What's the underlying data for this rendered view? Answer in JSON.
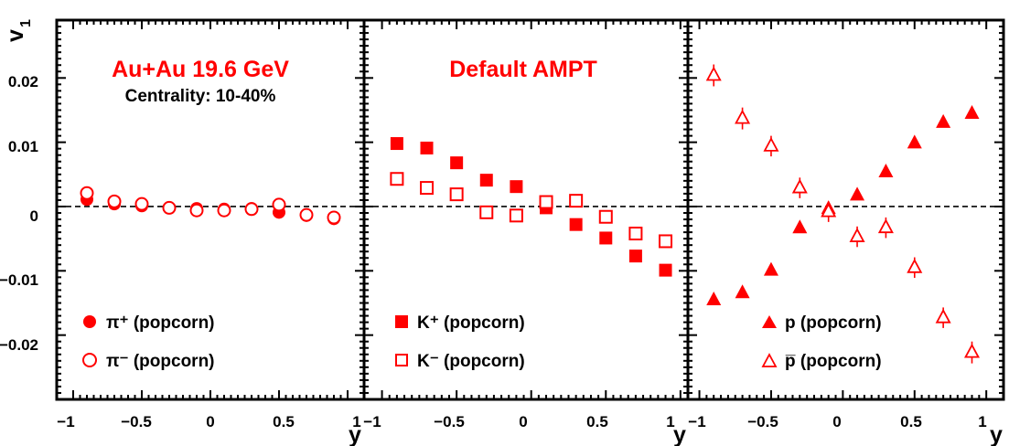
{
  "colors": {
    "marker": "#ff0000",
    "frame": "#000000",
    "background": "#ffffff"
  },
  "chart_data": {
    "type": "scatter",
    "ylabel": "v",
    "ylabel_sub": "1",
    "xlabel": "y",
    "xlim": [
      -1,
      1
    ],
    "ylim": [
      -0.03,
      0.029
    ],
    "x_ticks": [
      "−1",
      "−0.5",
      "0",
      "0.5",
      "1"
    ],
    "x_tick_values": [
      -1,
      -0.5,
      0,
      0.5,
      1
    ],
    "y_ticks": [
      "−0.02",
      "−0.01",
      "0",
      "0.01",
      "0.02"
    ],
    "y_tick_values": [
      -0.02,
      -0.01,
      0,
      0.01,
      0.02
    ],
    "zero_line": "dashed",
    "panels": [
      {
        "name": "pions",
        "title": "Au+Au 19.6 GeV",
        "subtitle": "Centrality: 10-40%",
        "series": [
          {
            "name": "π⁺ (popcorn)",
            "marker": "circle",
            "filled": true,
            "x": [
              -0.9,
              -0.7,
              -0.5,
              -0.3,
              -0.1,
              0.1,
              0.3,
              0.5,
              0.7,
              0.9
            ],
            "y": [
              0.0011,
              0.0004,
              0.0001,
              -0.0002,
              -0.0003,
              -0.0004,
              -0.0003,
              -0.0009,
              -0.0014,
              -0.0019
            ]
          },
          {
            "name": "π⁻ (popcorn)",
            "marker": "circle",
            "filled": false,
            "x": [
              -0.9,
              -0.7,
              -0.5,
              -0.3,
              -0.1,
              0.1,
              0.3,
              0.5,
              0.7,
              0.9
            ],
            "y": [
              0.0021,
              0.0008,
              0.0004,
              -0.0002,
              -0.0006,
              -0.0006,
              -0.0004,
              0.0003,
              -0.0013,
              -0.0017
            ]
          }
        ]
      },
      {
        "name": "kaons",
        "title": "Default AMPT",
        "subtitle": "",
        "series": [
          {
            "name": "K⁺ (popcorn)",
            "marker": "square",
            "filled": true,
            "x": [
              -0.9,
              -0.7,
              -0.5,
              -0.3,
              -0.1,
              0.1,
              0.3,
              0.5,
              0.7,
              0.9
            ],
            "y": [
              0.0098,
              0.0091,
              0.0068,
              0.0041,
              0.0031,
              -0.0002,
              -0.0028,
              -0.0049,
              -0.0077,
              -0.0099
            ]
          },
          {
            "name": "K⁻ (popcorn)",
            "marker": "square",
            "filled": false,
            "x": [
              -0.9,
              -0.7,
              -0.5,
              -0.3,
              -0.1,
              0.1,
              0.3,
              0.5,
              0.7,
              0.9
            ],
            "y": [
              0.0043,
              0.0029,
              0.0019,
              -0.0009,
              -0.0014,
              0.0007,
              0.0009,
              -0.0016,
              -0.0042,
              -0.0054
            ]
          }
        ]
      },
      {
        "name": "protons",
        "title": "",
        "subtitle": "",
        "series": [
          {
            "name": "p (popcorn)",
            "marker": "triangle",
            "filled": true,
            "x": [
              -0.9,
              -0.7,
              -0.5,
              -0.3,
              -0.1,
              0.1,
              0.3,
              0.5,
              0.7,
              0.9
            ],
            "y": [
              -0.0145,
              -0.0134,
              -0.0099,
              -0.0033,
              -0.0003,
              0.0018,
              0.0054,
              0.0099,
              0.0131,
              0.0145
            ],
            "err": [
              0,
              0,
              0,
              0,
              0,
              0,
              0,
              0,
              0,
              0
            ]
          },
          {
            "name": "p̅ (popcorn)",
            "marker": "triangle",
            "filled": false,
            "x": [
              -0.9,
              -0.7,
              -0.5,
              -0.3,
              -0.1,
              0.1,
              0.3,
              0.5,
              0.7,
              0.9
            ],
            "y": [
              0.0204,
              0.0137,
              0.0094,
              0.0029,
              -0.0008,
              -0.0047,
              -0.0033,
              -0.0095,
              -0.0173,
              -0.0227
            ],
            "err": [
              0.0017,
              0.0017,
              0.0016,
              0.0016,
              0.0016,
              0.0016,
              0.0016,
              0.0016,
              0.0016,
              0.0017
            ]
          }
        ]
      }
    ]
  }
}
